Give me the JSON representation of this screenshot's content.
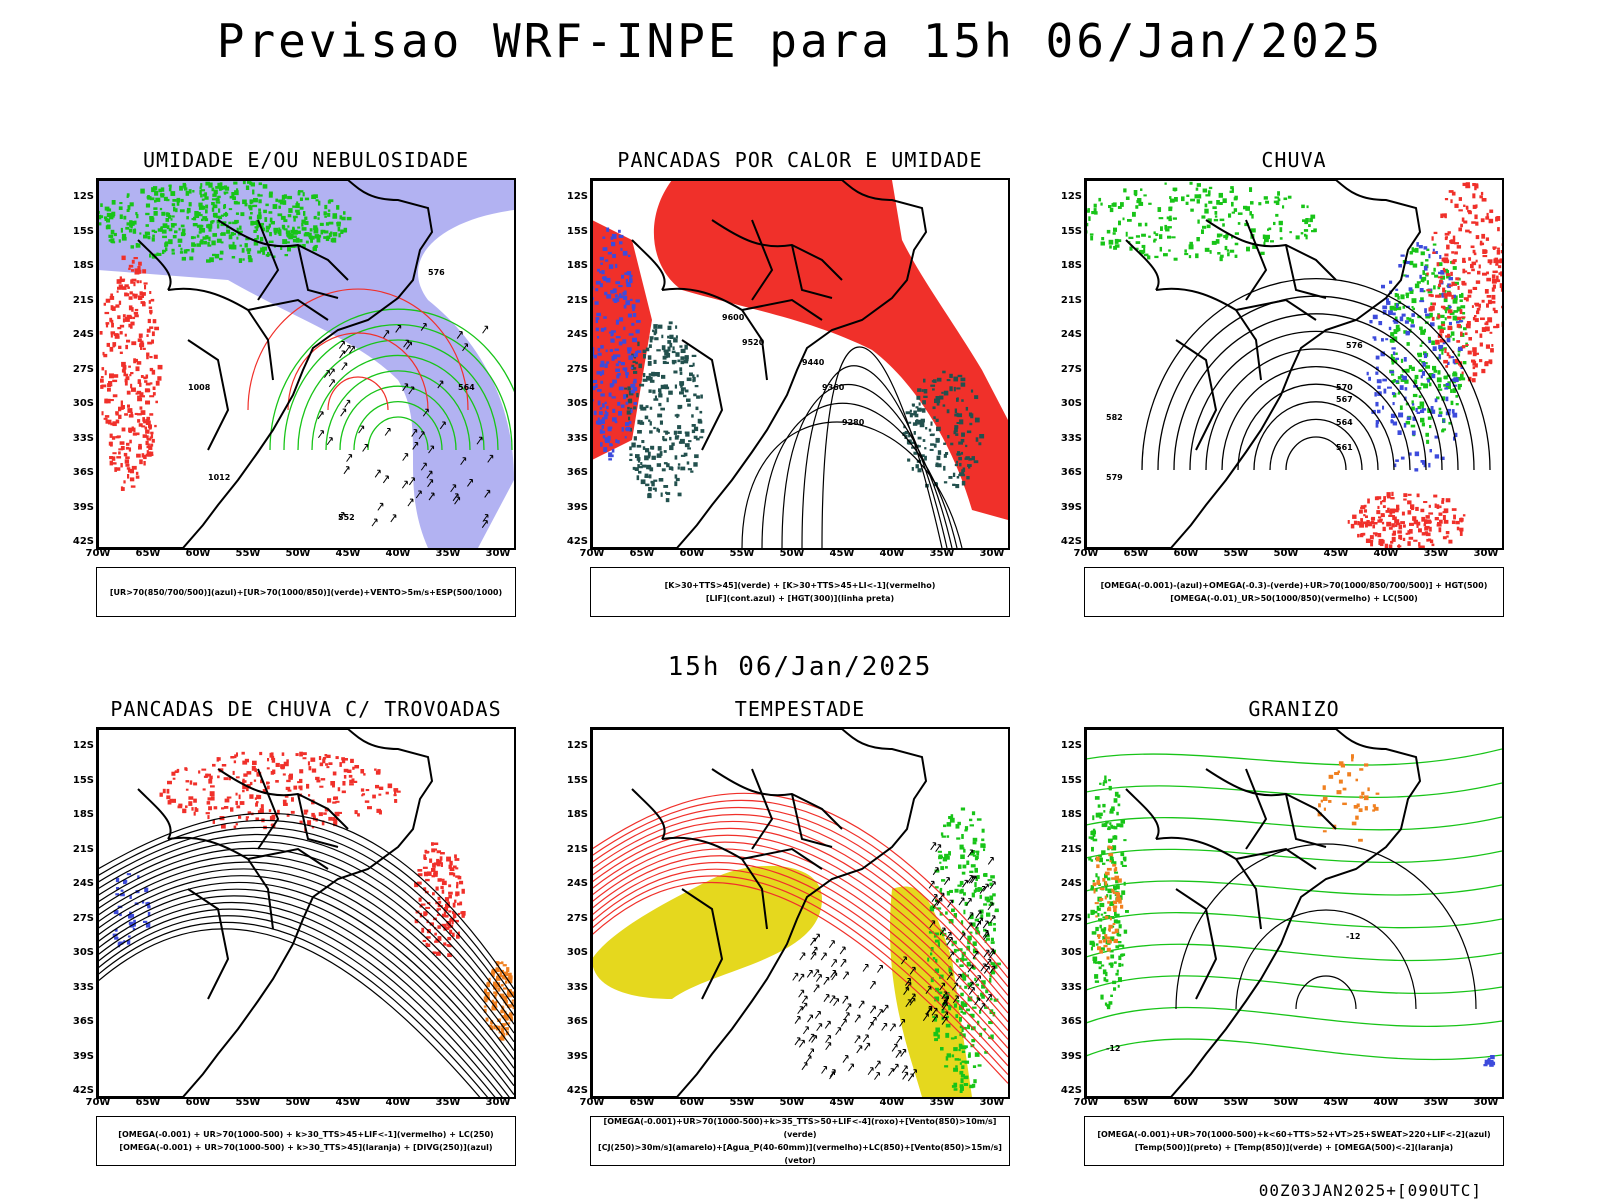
{
  "title": "Previsao WRF-INPE  para 15h 06/Jan/2025",
  "mid_title": "15h 06/Jan/2025",
  "footer": "00Z03JAN2025+[090UTC]",
  "colors": {
    "red": "#f0302a",
    "blue": "#3d4bdc",
    "green": "#18c418",
    "lavender": "#b2b2f2",
    "dark": "#23514e",
    "yellow": "#e5d81e",
    "orange": "#f08020"
  },
  "axes": {
    "lat_labels": [
      "12S",
      "15S",
      "18S",
      "21S",
      "24S",
      "27S",
      "30S",
      "33S",
      "36S",
      "39S",
      "42S"
    ],
    "lon_labels": [
      "70W",
      "65W",
      "60W",
      "55W",
      "50W",
      "45W",
      "40W",
      "35W",
      "30W"
    ]
  },
  "panels": [
    {
      "title": "UMIDADE E/OU NEBULOSIDADE",
      "legend": [
        "[UR>70(850/700/500)](azul)+[UR>70(1000/850)](verde)+VENTO>5m/s+ESP(500/1000)"
      ],
      "contour_labels": [
        "1008",
        "1012",
        "576",
        "564",
        "552"
      ]
    },
    {
      "title": "PANCADAS POR CALOR E UMIDADE",
      "legend": [
        "[K>30+TTS>45](verde) + [K>30+TTS>45+LI<-1](vermelho)",
        "[LIF](cont.azul) + [HGT(300)](linha preta)"
      ],
      "contour_labels": [
        "9600",
        "9520",
        "9440",
        "9360",
        "9280"
      ]
    },
    {
      "title": "CHUVA",
      "legend": [
        "[OMEGA(-0.001)-(azul)+OMEGA(-0.3)-(verde)+UR>70(1000/850/700/500)] + HGT(500)",
        "[OMEGA(-0.01)_UR>50(1000/850)(vermelho) + LC(500)"
      ],
      "contour_labels": [
        "582",
        "576",
        "570",
        "567",
        "564",
        "561",
        "579"
      ]
    },
    {
      "title": "PANCADAS DE CHUVA C/ TROVOADAS",
      "legend": [
        "[OMEGA(-0.001) + UR>70(1000-500) + k>30_TTS>45+LIF<-1](vermelho) + LC(250)",
        "[OMEGA(-0.001) + UR>70(1000-500) + k>30_TTS>45](laranja) + [DIVG(250)](azul)"
      ],
      "contour_labels": []
    },
    {
      "title": "TEMPESTADE",
      "legend": [
        "[OMEGA(-0.001)+UR>70(1000-500)+k>35_TTS>50+LIF<-4](roxo)+[Vento(850)>10m/s](verde)",
        "[CJ(250)>30m/s](amarelo)+[Agua_P(40-60mm)](vermelho)+LC(850)+[Vento(850)>15m/s](vetor)"
      ],
      "contour_labels": []
    },
    {
      "title": "GRANIZO",
      "legend": [
        "[OMEGA(-0.001)+UR>70(1000-500)+k<60+TTS>52+VT>25+SWEAT>220+LIF<-2](azul)",
        "[Temp(500)](preto) + [Temp(850)](verde) + [OMEGA(500)<-2](laranja)"
      ],
      "contour_labels": [
        "-12",
        "-12"
      ]
    }
  ]
}
